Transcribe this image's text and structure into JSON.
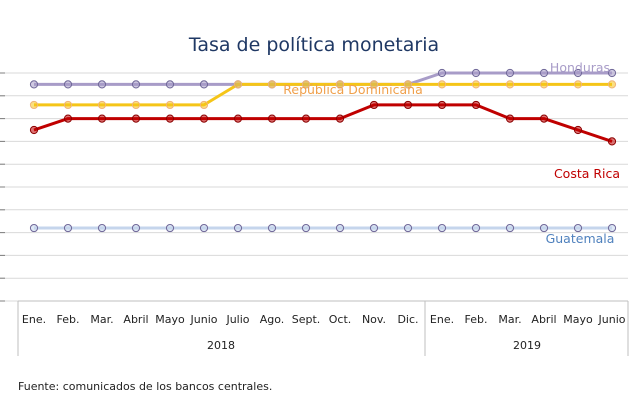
{
  "chart_data": {
    "type": "line",
    "title": "Tasa de política monetaria",
    "x": [
      "Ene.",
      "Feb.",
      "Mar.",
      "Abril",
      "Mayo",
      "Junio",
      "Julio",
      "Ago.",
      "Sept.",
      "Oct.",
      "Nov.",
      "Dic.",
      "Ene.",
      "Feb.",
      "Mar.",
      "Abril",
      "Mayo",
      "Junio"
    ],
    "year_groups": [
      {
        "label": "2018",
        "start": 0,
        "end": 11
      },
      {
        "label": "2019",
        "start": 12,
        "end": 17
      }
    ],
    "ylim": [
      0,
      10
    ],
    "y_gridlines": [
      0,
      1,
      2,
      3,
      4,
      5,
      6,
      7,
      8,
      9,
      10
    ],
    "grid": true,
    "series": [
      {
        "name": "Honduras",
        "color": "#a89cc8",
        "label_color": "#a89cc8",
        "values": [
          9.5,
          9.5,
          9.5,
          9.5,
          9.5,
          9.5,
          9.5,
          9.5,
          9.5,
          9.5,
          9.5,
          9.5,
          10.0,
          10.0,
          10.0,
          10.0,
          10.0,
          10.0
        ]
      },
      {
        "name": "República Dominicana",
        "color": "#f5c518",
        "label_color": "#f0a04b",
        "values": [
          8.6,
          8.6,
          8.6,
          8.6,
          8.6,
          8.6,
          9.5,
          9.5,
          9.5,
          9.5,
          9.5,
          9.5,
          9.5,
          9.5,
          9.5,
          9.5,
          9.5,
          9.5
        ]
      },
      {
        "name": "Costa Rica",
        "color": "#c00000",
        "label_color": "#c00000",
        "values": [
          7.5,
          8.0,
          8.0,
          8.0,
          8.0,
          8.0,
          8.0,
          8.0,
          8.0,
          8.0,
          8.6,
          8.6,
          8.6,
          8.6,
          8.0,
          8.0,
          7.5,
          7.0
        ]
      },
      {
        "name": "Guatemala",
        "color": "#c5d5ec",
        "label_color": "#4f81bd",
        "values": [
          3.2,
          3.2,
          3.2,
          3.2,
          3.2,
          3.2,
          3.2,
          3.2,
          3.2,
          3.2,
          3.2,
          3.2,
          3.2,
          3.2,
          3.2,
          3.2,
          3.2,
          3.2
        ]
      }
    ]
  },
  "source": "Fuente: comunicados de los bancos centrales."
}
